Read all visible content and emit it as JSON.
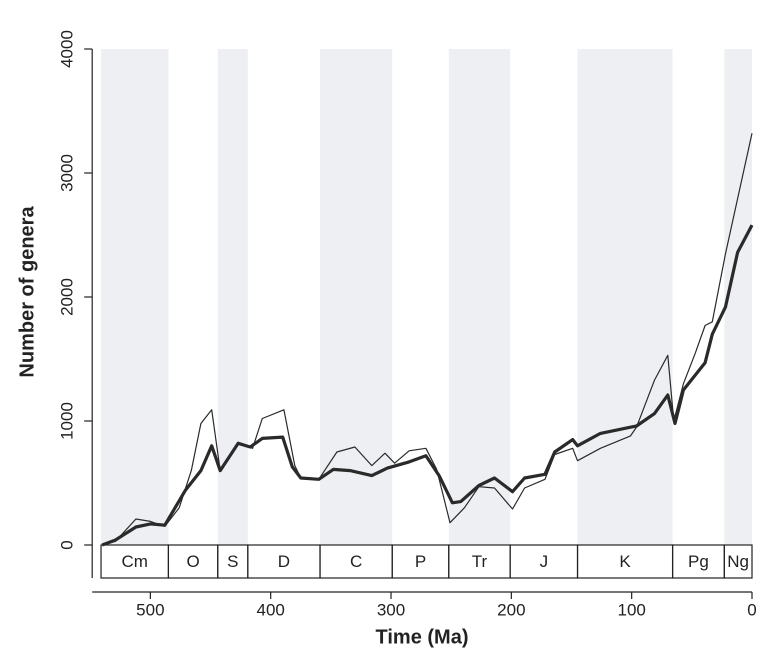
{
  "chart_data": {
    "type": "line",
    "x_label": "Time (Ma)",
    "y_label": "Number of genera",
    "xlim": [
      550,
      0
    ],
    "ylim": [
      0,
      4000
    ],
    "xticks": [
      500,
      400,
      300,
      200,
      100,
      0
    ],
    "yticks": [
      0,
      1000,
      2000,
      3000,
      4000
    ],
    "periods": [
      {
        "name": "Cm",
        "start": 541,
        "end": 485
      },
      {
        "name": "O",
        "start": 485,
        "end": 444
      },
      {
        "name": "S",
        "start": 444,
        "end": 419
      },
      {
        "name": "D",
        "start": 419,
        "end": 359
      },
      {
        "name": "C",
        "start": 359,
        "end": 299
      },
      {
        "name": "P",
        "start": 299,
        "end": 252
      },
      {
        "name": "Tr",
        "start": 252,
        "end": 201
      },
      {
        "name": "J",
        "start": 201,
        "end": 145
      },
      {
        "name": "K",
        "start": 145,
        "end": 66
      },
      {
        "name": "Pg",
        "start": 66,
        "end": 23
      },
      {
        "name": "Ng",
        "start": 23,
        "end": 0
      }
    ],
    "shade_color": "#eeeff3",
    "series": [
      {
        "color": "#2a2a2a",
        "width": 3.2,
        "x": [
          540,
          529,
          512,
          500,
          488,
          471,
          458,
          449,
          442,
          427,
          417,
          407,
          390,
          382,
          375,
          360,
          348,
          334,
          316,
          303,
          285,
          271,
          260,
          249,
          242,
          227,
          214,
          199,
          189,
          172,
          164,
          149,
          145,
          126,
          101,
          96,
          81,
          70,
          64,
          57,
          39,
          33,
          22,
          12,
          0
        ],
        "values": [
          0,
          40,
          145,
          170,
          160,
          440,
          600,
          800,
          600,
          820,
          790,
          860,
          870,
          630,
          540,
          530,
          610,
          600,
          560,
          620,
          670,
          720,
          560,
          340,
          350,
          480,
          540,
          430,
          540,
          570,
          750,
          850,
          800,
          900,
          950,
          960,
          1060,
          1210,
          980,
          1250,
          1470,
          1700,
          1920,
          2360,
          2580
        ]
      },
      {
        "color": "#2a2a2a",
        "width": 1.2,
        "x": [
          540,
          529,
          512,
          500,
          488,
          476,
          466,
          458,
          449,
          442,
          427,
          415,
          407,
          389,
          380,
          375,
          360,
          345,
          330,
          316,
          305,
          297,
          285,
          271,
          262,
          251,
          239,
          227,
          214,
          199,
          189,
          172,
          164,
          149,
          145,
          126,
          101,
          96,
          81,
          70,
          65,
          57,
          47,
          39,
          33,
          22,
          0
        ],
        "values": [
          0,
          30,
          210,
          190,
          150,
          300,
          600,
          980,
          1090,
          600,
          820,
          780,
          1020,
          1090,
          640,
          540,
          530,
          750,
          790,
          640,
          740,
          660,
          760,
          780,
          610,
          180,
          300,
          470,
          460,
          290,
          460,
          530,
          730,
          780,
          680,
          780,
          880,
          950,
          1330,
          1530,
          1000,
          1300,
          1550,
          1770,
          1800,
          2350,
          3320
        ]
      }
    ]
  }
}
